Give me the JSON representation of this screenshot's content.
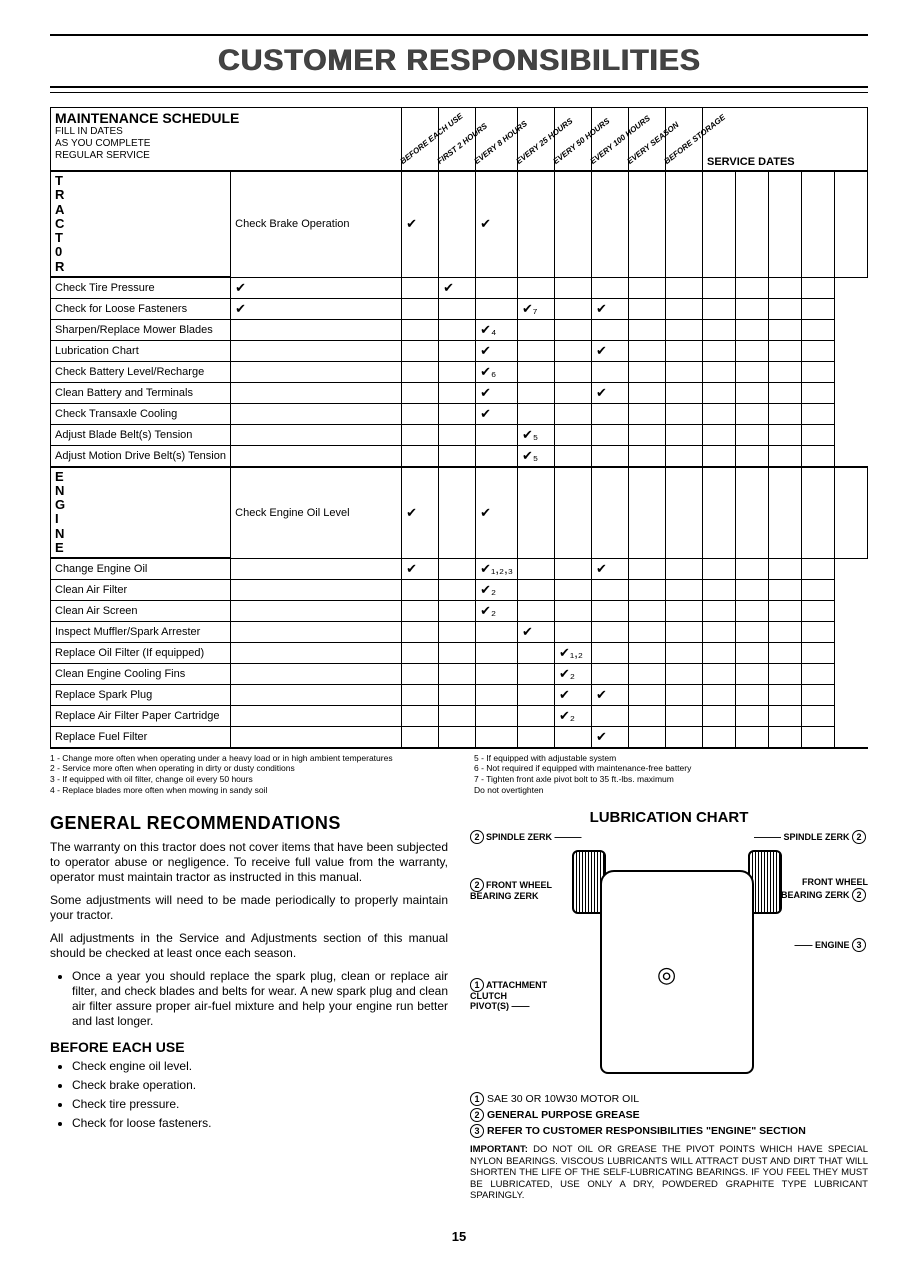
{
  "pageTitle": "CUSTOMER RESPONSIBILITIES",
  "schedule": {
    "heading": "MAINTENANCE SCHEDULE",
    "subheading": "FILL IN DATES\nAS YOU COMPLETE\nREGULAR SERVICE",
    "intervalHeaders": [
      "BEFORE EACH USE",
      "FIRST 2 HOURS",
      "EVERY 8 HOURS",
      "EVERY 25 HOURS",
      "EVERY 50 HOURS",
      "EVERY 100 HOURS",
      "EVERY SEASON",
      "BEFORE STORAGE"
    ],
    "serviceDatesLabel": "SERVICE DATES",
    "groups": [
      {
        "label": "T\nR\nA\nC\nT\n0\nR",
        "rows": [
          {
            "task": "Check Brake Operation",
            "marks": {
              "0": "✔",
              "2": "✔"
            }
          },
          {
            "task": "Check Tire Pressure",
            "marks": {
              "0": "✔",
              "2": "✔"
            }
          },
          {
            "task": "Check for Loose Fasteners",
            "marks": {
              "0": "✔",
              "4": "✔₇",
              "6": "✔"
            }
          },
          {
            "task": "Sharpen/Replace Mower Blades",
            "marks": {
              "3": "✔₄"
            }
          },
          {
            "task": "Lubrication Chart",
            "marks": {
              "3": "✔",
              "6": "✔"
            }
          },
          {
            "task": "Check Battery Level/Recharge",
            "marks": {
              "3": "✔₆"
            }
          },
          {
            "task": "Clean Battery and Terminals",
            "marks": {
              "3": "✔",
              "6": "✔"
            }
          },
          {
            "task": "Check Transaxle Cooling",
            "marks": {
              "3": "✔"
            }
          },
          {
            "task": "Adjust Blade Belt(s) Tension",
            "marks": {
              "4": "✔₅"
            }
          },
          {
            "task": "Adjust Motion Drive Belt(s) Tension",
            "marks": {
              "4": "✔₅"
            }
          }
        ]
      },
      {
        "label": "E\nN\nG\nI\nN\nE",
        "rows": [
          {
            "task": "Check Engine Oil Level",
            "marks": {
              "0": "✔",
              "2": "✔"
            }
          },
          {
            "task": "Change Engine Oil",
            "marks": {
              "1": "✔",
              "3": "✔₁,₂,₃",
              "6": "✔"
            }
          },
          {
            "task": "Clean Air Filter",
            "marks": {
              "3": "✔₂"
            }
          },
          {
            "task": "Clean Air Screen",
            "marks": {
              "3": "✔₂"
            }
          },
          {
            "task": "Inspect Muffler/Spark Arrester",
            "marks": {
              "4": "✔"
            }
          },
          {
            "task": "Replace Oil Filter (If equipped)",
            "marks": {
              "5": "✔₁,₂"
            }
          },
          {
            "task": "Clean Engine Cooling Fins",
            "marks": {
              "5": "✔₂"
            }
          },
          {
            "task": "Replace Spark Plug",
            "marks": {
              "5": "✔",
              "6": "✔"
            }
          },
          {
            "task": "Replace Air Filter Paper Cartridge",
            "marks": {
              "5": "✔₂"
            }
          },
          {
            "task": "Replace Fuel Filter",
            "marks": {
              "6": "✔"
            }
          }
        ]
      }
    ]
  },
  "footnotes": {
    "left": "1 - Change more often when operating under a heavy load or in high ambient temperatures\n2 - Service more often when operating in dirty or dusty conditions\n3 - If equipped with oil filter, change oil every 50 hours\n4 - Replace blades more often when mowing in sandy soil",
    "right": "5 - If equipped with adjustable system\n6 - Not required if equipped with maintenance-free battery\n7 - Tighten front axle pivot bolt to 35 ft.-lbs. maximum\n     Do not overtighten"
  },
  "general": {
    "heading": "GENERAL RECOMMENDATIONS",
    "p1": "The warranty on this tractor does not cover items that have been subjected to operator abuse or negligence. To receive full value from the warranty, operator must maintain tractor as instructed in this manual.",
    "p2": "Some adjustments will need to be made periodically to properly maintain your tractor.",
    "p3": "All adjustments in the Service and Adjustments section of this manual should be checked at least once each season.",
    "bullet1": "Once a year you should replace the spark plug, clean or replace air filter, and check blades and belts for wear. A new spark plug and clean air filter assure proper air-fuel mixture and help your engine run better and last longer."
  },
  "beforeEach": {
    "heading": "BEFORE EACH USE",
    "items": [
      "Check engine oil level.",
      "Check brake operation.",
      "Check tire pressure.",
      "Check for loose fasteners."
    ]
  },
  "lubrication": {
    "heading": "LUBRICATION CHART",
    "labels": {
      "spindleL": "SPINDLE ZERK",
      "spindleR": "SPINDLE ZERK",
      "wheelL": "FRONT WHEEL\nBEARING ZERK",
      "wheelR": "FRONT WHEEL\nBEARING ZERK",
      "engine": "ENGINE",
      "clutch": "ATTACHMENT\nCLUTCH\nPIVOT(S)"
    },
    "legend": {
      "l1": "SAE 30 OR 10W30 MOTOR OIL",
      "l2": "GENERAL PURPOSE GREASE",
      "l3": "REFER TO CUSTOMER RESPONSIBILITIES \"ENGINE\" SECTION"
    },
    "important": "IMPORTANT: DO NOT OIL OR GREASE THE PIVOT POINTS WHICH HAVE SPECIAL NYLON BEARINGS. VISCOUS LUBRICANTS WILL ATTRACT DUST AND DIRT THAT WILL SHORTEN THE LIFE OF THE SELF-LUBRICATING BEARINGS. IF YOU FEEL THEY MUST BE LUBRICATED, USE ONLY A DRY, POWDERED GRAPHITE TYPE LUBRICANT SPARINGLY."
  },
  "pageNumber": "15"
}
